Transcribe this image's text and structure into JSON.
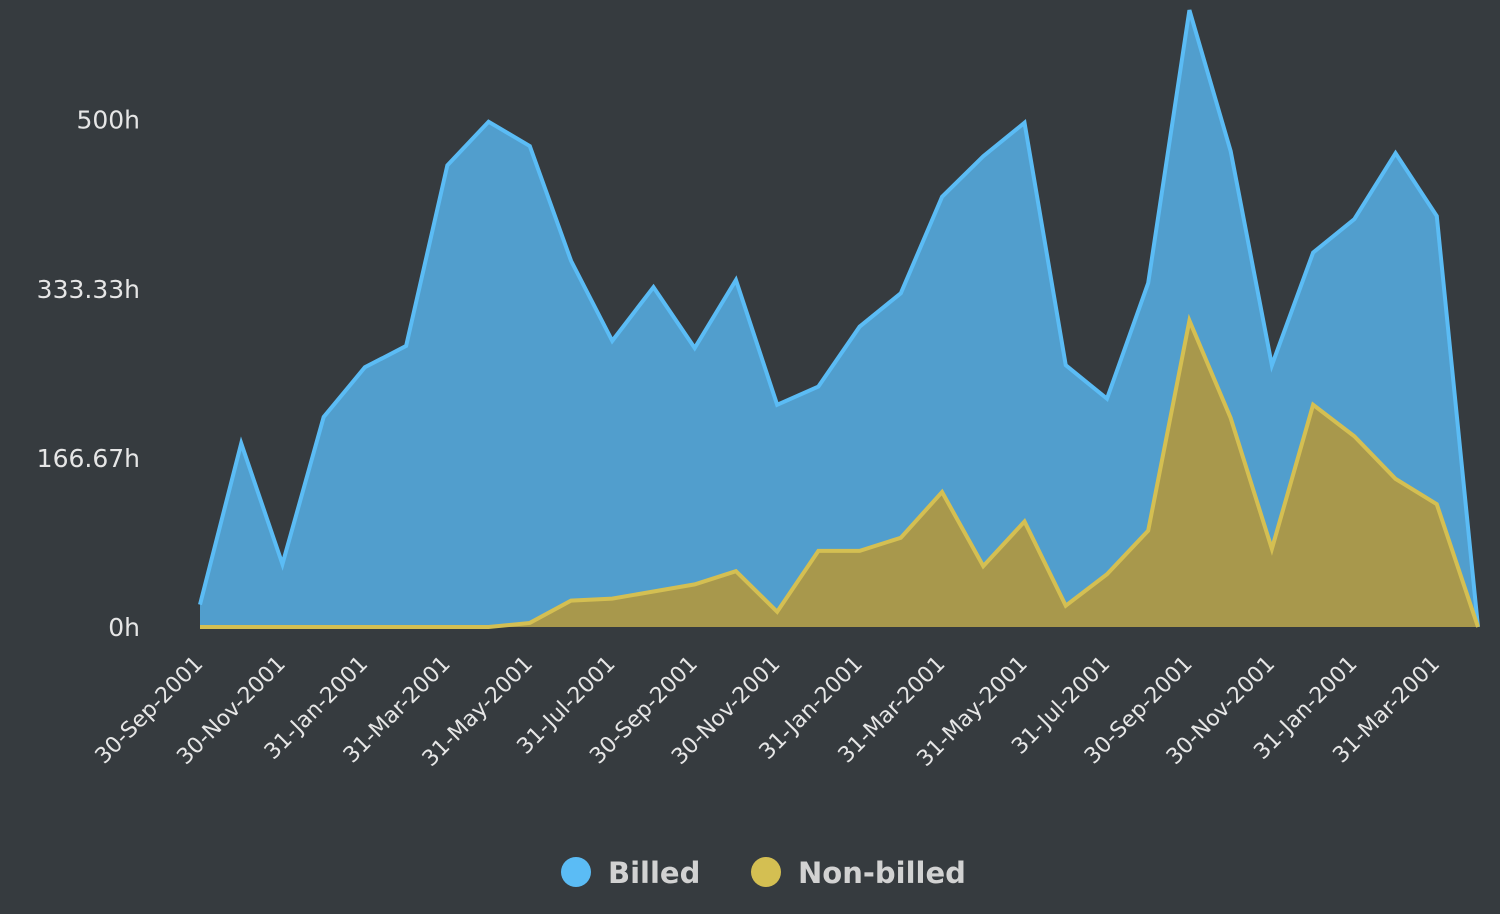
{
  "chart_data": {
    "type": "area",
    "title": "",
    "xlabel": "",
    "ylabel": "",
    "x_tick_labels": [
      "30-Sep-2001",
      "30-Nov-2001",
      "31-Jan-2001",
      "31-Mar-2001",
      "31-May-2001",
      "31-Jul-2001",
      "30-Sep-2001",
      "30-Nov-2001",
      "31-Jan-2001",
      "31-Mar-2001",
      "31-May-2001",
      "31-Jul-2001",
      "30-Sep-2001",
      "30-Nov-2001",
      "31-Jan-2001",
      "31-Mar-2001"
    ],
    "y_tick_labels": [
      "0h",
      "166.67h",
      "333.33h",
      "500h"
    ],
    "y_ticks": [
      0,
      166.67,
      333.33,
      500
    ],
    "ylim": [
      0,
      600
    ],
    "grid": false,
    "legend_position": "bottom",
    "series": [
      {
        "name": "Billed",
        "color": "#5bbcf5",
        "fill": "#519ecd",
        "values": [
          22,
          181,
          62,
          207,
          256,
          277,
          455,
          498,
          474,
          361,
          282,
          335,
          275,
          342,
          219,
          237,
          296,
          329,
          424,
          464,
          497,
          258,
          225,
          339,
          608,
          469,
          258,
          369,
          402,
          467,
          405,
          0
        ]
      },
      {
        "name": "Non-billed",
        "color": "#d4bf52",
        "fill": "#a8984c",
        "values": [
          0,
          0,
          0,
          0,
          0,
          0,
          0,
          0,
          4,
          26,
          28,
          35,
          42,
          55,
          15,
          75,
          75,
          88,
          133,
          60,
          104,
          21,
          52,
          95,
          302,
          206,
          77,
          219,
          188,
          146,
          121,
          0
        ]
      }
    ]
  }
}
